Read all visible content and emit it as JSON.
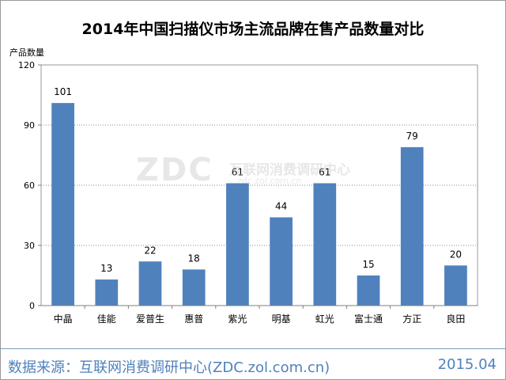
{
  "chart_data": {
    "type": "bar",
    "title": "2014年中国扫描仪市场主流品牌在售产品数量对比",
    "ylabel": "产品数量",
    "xlabel": "",
    "categories": [
      "中晶",
      "佳能",
      "爱普生",
      "惠普",
      "紫光",
      "明基",
      "虹光",
      "富士通",
      "方正",
      "良田"
    ],
    "values": [
      101,
      13,
      22,
      18,
      61,
      44,
      61,
      15,
      79,
      20
    ],
    "ylim": [
      0,
      120
    ],
    "yticks": [
      0,
      30,
      60,
      90,
      120
    ],
    "grid": true,
    "legend": "none",
    "bar_color": "#4f81bd"
  },
  "watermark": {
    "logo": "ZDC",
    "name": "互联网消费调研中心",
    "url": "zdc.zol.com.cn"
  },
  "footer": {
    "source": "数据来源：互联网消费调研中心(ZDC.zol.com.cn)",
    "date": "2015.04"
  }
}
